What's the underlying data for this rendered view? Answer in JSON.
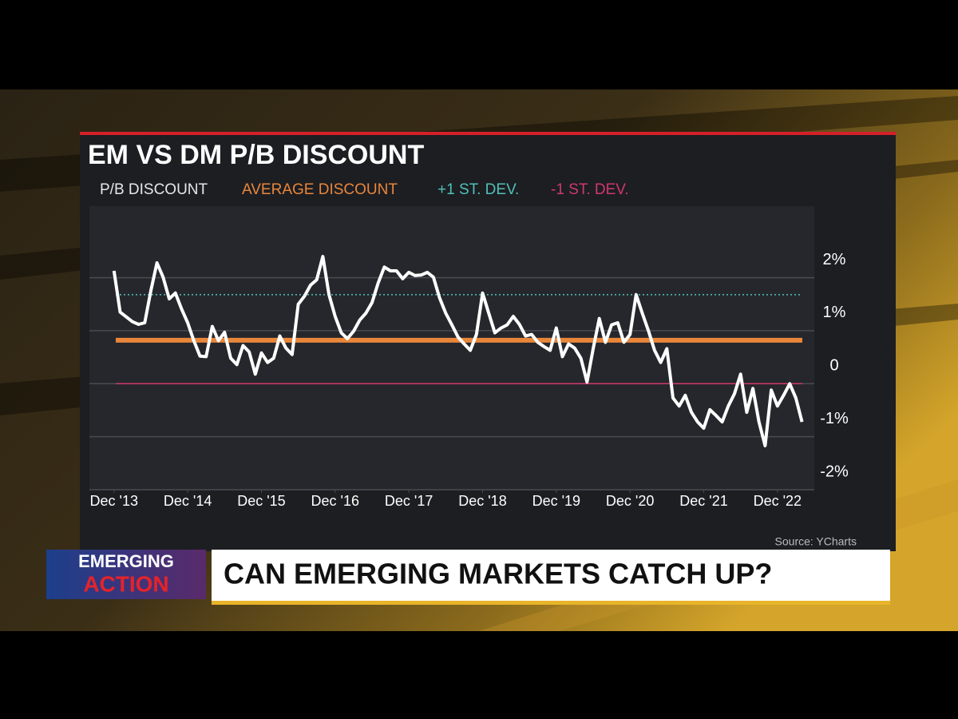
{
  "chart_data": {
    "type": "line",
    "title": "EM VS DM P/B DISCOUNT",
    "x": [
      "2013-12",
      "2014-01",
      "2014-02",
      "2014-03",
      "2014-04",
      "2014-05",
      "2014-06",
      "2014-07",
      "2014-08",
      "2014-09",
      "2014-10",
      "2014-11",
      "2014-12",
      "2015-01",
      "2015-02",
      "2015-03",
      "2015-04",
      "2015-05",
      "2015-06",
      "2015-07",
      "2015-08",
      "2015-09",
      "2015-10",
      "2015-11",
      "2015-12",
      "2016-01",
      "2016-02",
      "2016-03",
      "2016-04",
      "2016-05",
      "2016-06",
      "2016-07",
      "2016-08",
      "2016-09",
      "2016-10",
      "2016-11",
      "2016-12",
      "2017-01",
      "2017-02",
      "2017-03",
      "2017-04",
      "2017-05",
      "2017-06",
      "2017-07",
      "2017-08",
      "2017-09",
      "2017-10",
      "2017-11",
      "2017-12",
      "2018-01",
      "2018-02",
      "2018-03",
      "2018-04",
      "2018-05",
      "2018-06",
      "2018-07",
      "2018-08",
      "2018-09",
      "2018-10",
      "2018-11",
      "2018-12",
      "2019-01",
      "2019-02",
      "2019-03",
      "2019-04",
      "2019-05",
      "2019-06",
      "2019-07",
      "2019-08",
      "2019-09",
      "2019-10",
      "2019-11",
      "2019-12",
      "2020-01",
      "2020-02",
      "2020-03",
      "2020-04",
      "2020-05",
      "2020-06",
      "2020-07",
      "2020-08",
      "2020-09",
      "2020-10",
      "2020-11",
      "2020-12",
      "2021-01",
      "2021-02",
      "2021-03",
      "2021-04",
      "2021-05",
      "2021-06",
      "2021-07",
      "2021-08",
      "2021-09",
      "2021-10",
      "2021-11",
      "2021-12",
      "2022-01",
      "2022-02",
      "2022-03",
      "2022-04",
      "2022-05",
      "2022-06",
      "2022-07",
      "2022-08",
      "2022-09",
      "2022-10",
      "2022-11",
      "2022-12",
      "2023-01",
      "2023-02",
      "2023-03",
      "2023-04"
    ],
    "series": [
      {
        "name": "P/B DISCOUNT",
        "color": "#ffffff",
        "values": [
          2.13,
          1.35,
          1.26,
          1.17,
          1.12,
          1.15,
          1.75,
          2.28,
          2.01,
          1.6,
          1.71,
          1.41,
          1.15,
          0.81,
          0.52,
          0.51,
          1.08,
          0.81,
          0.97,
          0.48,
          0.36,
          0.72,
          0.6,
          0.18,
          0.58,
          0.4,
          0.48,
          0.9,
          0.67,
          0.55,
          1.5,
          1.65,
          1.86,
          1.96,
          2.4,
          1.68,
          1.27,
          0.96,
          0.85,
          0.99,
          1.2,
          1.33,
          1.53,
          1.9,
          2.2,
          2.13,
          2.13,
          1.98,
          2.1,
          2.04,
          2.05,
          2.1,
          2.01,
          1.62,
          1.33,
          1.11,
          0.88,
          0.75,
          0.63,
          0.93,
          1.71,
          1.33,
          0.96,
          1.05,
          1.11,
          1.27,
          1.12,
          0.9,
          0.93,
          0.78,
          0.7,
          0.63,
          1.05,
          0.51,
          0.75,
          0.67,
          0.48,
          0.03,
          0.66,
          1.23,
          0.78,
          1.11,
          1.15,
          0.78,
          0.93,
          1.68,
          1.33,
          1.0,
          0.63,
          0.4,
          0.66,
          -0.27,
          -0.42,
          -0.22,
          -0.54,
          -0.72,
          -0.84,
          -0.49,
          -0.6,
          -0.72,
          -0.42,
          -0.19,
          0.18,
          -0.54,
          -0.09,
          -0.72,
          -1.17,
          -0.12,
          -0.42,
          -0.22,
          0.0,
          -0.27,
          -0.72
        ]
      }
    ],
    "reference_lines": [
      {
        "name": "AVERAGE DISCOUNT",
        "value": 0.82,
        "color": "#e8863a"
      },
      {
        "name": "+1 ST. DEV.",
        "value": 1.68,
        "color": "#4fc1b8"
      },
      {
        "name": "-1 ST. DEV.",
        "value": 0.0,
        "color": "#d0386a"
      }
    ],
    "xlim": [
      "2013-08",
      "2023-06"
    ],
    "xticks": [
      {
        "value": "2013-12",
        "label": "Dec '13"
      },
      {
        "value": "2014-12",
        "label": "Dec '14"
      },
      {
        "value": "2015-12",
        "label": "Dec '15"
      },
      {
        "value": "2016-12",
        "label": "Dec '16"
      },
      {
        "value": "2017-12",
        "label": "Dec '17"
      },
      {
        "value": "2018-12",
        "label": "Dec '18"
      },
      {
        "value": "2019-12",
        "label": "Dec '19"
      },
      {
        "value": "2020-12",
        "label": "Dec '20"
      },
      {
        "value": "2021-12",
        "label": "Dec '21"
      },
      {
        "value": "2022-12",
        "label": "Dec '22"
      }
    ],
    "ylim": [
      -2,
      3.35
    ],
    "yticks": [
      {
        "value": 2,
        "label": "2%"
      },
      {
        "value": 1,
        "label": "1%"
      },
      0,
      {
        "value": -1,
        "label": "-1%"
      },
      {
        "value": -2,
        "label": "-2%"
      }
    ],
    "grid": true,
    "source": "Source: YCharts"
  },
  "banner": {
    "tag_top": "EMERGING",
    "tag_bottom": "ACTION",
    "headline": "CAN EMERGING MARKETS CATCH UP?"
  }
}
